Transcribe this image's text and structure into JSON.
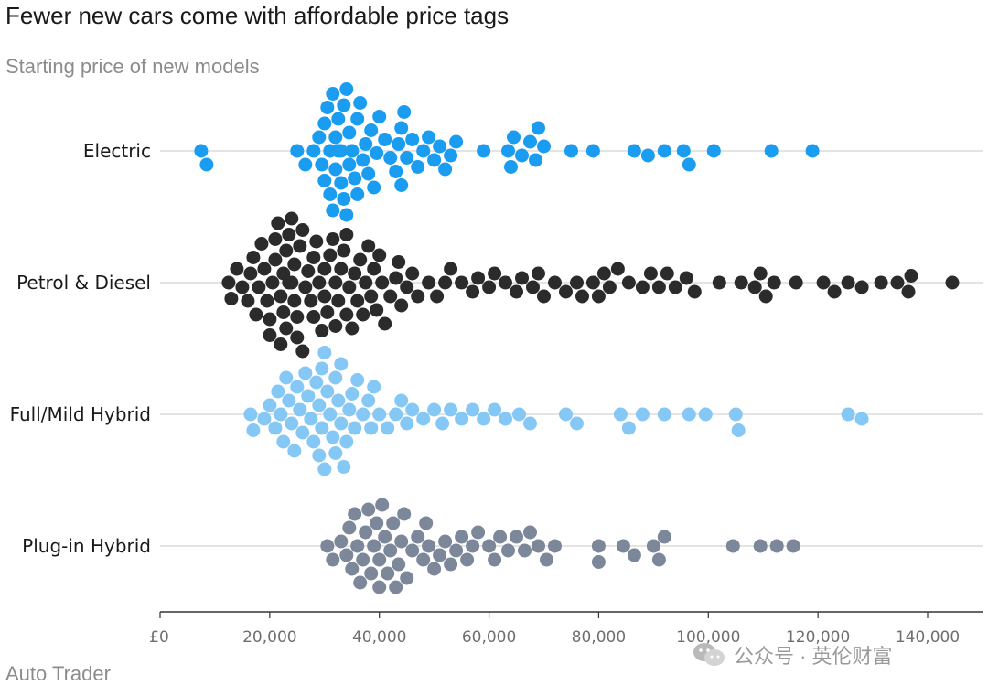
{
  "title": "Fewer new cars come with affordable price tags",
  "subtitle": "Starting price of new models",
  "source": "Auto Trader",
  "watermark": "公众号 · 英伦财富",
  "chart_data": {
    "type": "scatter",
    "subtype": "beeswarm",
    "title": "Fewer new cars come with affordable price tags",
    "subtitle": "Starting price of new models",
    "xlabel": "",
    "ylabel": "",
    "xlim": [
      0,
      150000
    ],
    "x_ticks": [
      0,
      20000,
      40000,
      60000,
      80000,
      100000,
      120000,
      140000
    ],
    "x_tick_labels": [
      "£0",
      "20,000",
      "40,000",
      "60,000",
      "80,000",
      "100,000",
      "120,000",
      "140,000"
    ],
    "categories": [
      "Electric",
      "Petrol & Diesel",
      "Full/Mild Hybrid",
      "Plug-in Hybrid"
    ],
    "grid": "horizontal category lines",
    "series": [
      {
        "name": "Electric",
        "color": "#1a9cf0",
        "values": [
          7500,
          8500,
          25000,
          26500,
          28000,
          29000,
          29500,
          30000,
          30000,
          30500,
          31000,
          31000,
          31500,
          31500,
          32000,
          32000,
          32500,
          32500,
          33000,
          33000,
          33500,
          33500,
          34000,
          34000,
          34500,
          34500,
          35000,
          35000,
          35500,
          36000,
          36000,
          36500,
          37000,
          37500,
          38000,
          38500,
          39000,
          39500,
          40000,
          41000,
          42000,
          43000,
          43500,
          44000,
          44000,
          44500,
          45000,
          46000,
          47000,
          48000,
          49000,
          50000,
          51000,
          52000,
          53000,
          54000,
          59000,
          63500,
          64000,
          64500,
          66000,
          67500,
          68500,
          69000,
          70000,
          75000,
          79000,
          86500,
          89000,
          92000,
          95500,
          96500,
          101000,
          111500,
          119000
        ]
      },
      {
        "name": "Petrol & Diesel",
        "color": "#2b2b2b",
        "values": [
          12500,
          13000,
          14000,
          15000,
          16000,
          16500,
          17000,
          17500,
          18000,
          18500,
          19000,
          19500,
          20000,
          20000,
          20500,
          21000,
          21000,
          21500,
          22000,
          22000,
          22500,
          22500,
          23000,
          23000,
          23500,
          23500,
          24000,
          24000,
          24500,
          24500,
          25000,
          25000,
          25500,
          26000,
          26000,
          26500,
          27000,
          27500,
          28000,
          28000,
          28500,
          29000,
          29500,
          30000,
          30000,
          30500,
          31000,
          31500,
          32000,
          32000,
          32500,
          33000,
          33500,
          34000,
          34000,
          34500,
          35000,
          35500,
          36000,
          36500,
          37000,
          37500,
          38000,
          38500,
          39000,
          39500,
          40000,
          40500,
          41000,
          42000,
          43000,
          43500,
          44000,
          45000,
          46000,
          47000,
          49000,
          50500,
          52000,
          53000,
          55000,
          57000,
          58000,
          60000,
          61000,
          63000,
          65000,
          66000,
          68000,
          69000,
          70000,
          72000,
          74000,
          76000,
          77000,
          79000,
          80000,
          81000,
          82000,
          83500,
          85500,
          88000,
          89500,
          91000,
          92500,
          94000,
          96000,
          97500,
          102000,
          106000,
          108500,
          109500,
          110500,
          112000,
          116000,
          121000,
          123000,
          125500,
          128000,
          131500,
          134500,
          136500,
          137000,
          144500
        ]
      },
      {
        "name": "Full/Mild Hybrid",
        "color": "#86c8f5",
        "values": [
          16500,
          17000,
          19000,
          20000,
          21000,
          21500,
          22000,
          22500,
          23000,
          23500,
          24000,
          24500,
          25000,
          25500,
          26000,
          26500,
          27000,
          27500,
          28000,
          28500,
          29000,
          29000,
          29500,
          29500,
          30000,
          30000,
          30500,
          31000,
          31500,
          32000,
          32000,
          32500,
          33000,
          33000,
          33500,
          34000,
          34500,
          35000,
          35500,
          36000,
          37000,
          38000,
          38500,
          39000,
          40000,
          41500,
          43000,
          44000,
          45000,
          46000,
          48000,
          50000,
          51500,
          53000,
          55000,
          57000,
          59000,
          61000,
          63000,
          65500,
          67500,
          74000,
          76000,
          84000,
          85500,
          88000,
          92000,
          96500,
          99500,
          105000,
          105500,
          125500,
          128000
        ]
      },
      {
        "name": "Plug-in Hybrid",
        "color": "#7c8799",
        "values": [
          30500,
          31500,
          33000,
          34000,
          34500,
          35000,
          35500,
          36000,
          36500,
          37000,
          37500,
          38000,
          38500,
          39000,
          39500,
          40000,
          40000,
          40500,
          41000,
          41500,
          42000,
          42500,
          43000,
          43500,
          44000,
          44500,
          45000,
          46000,
          47000,
          48000,
          48500,
          49000,
          50000,
          51000,
          52000,
          53000,
          54000,
          55000,
          56000,
          57000,
          58000,
          60000,
          61000,
          62000,
          63500,
          65000,
          66500,
          67500,
          69000,
          70500,
          72000,
          80000,
          80000,
          84500,
          86500,
          90000,
          91000,
          92000,
          104500,
          109500,
          112500,
          115500
        ]
      }
    ]
  }
}
